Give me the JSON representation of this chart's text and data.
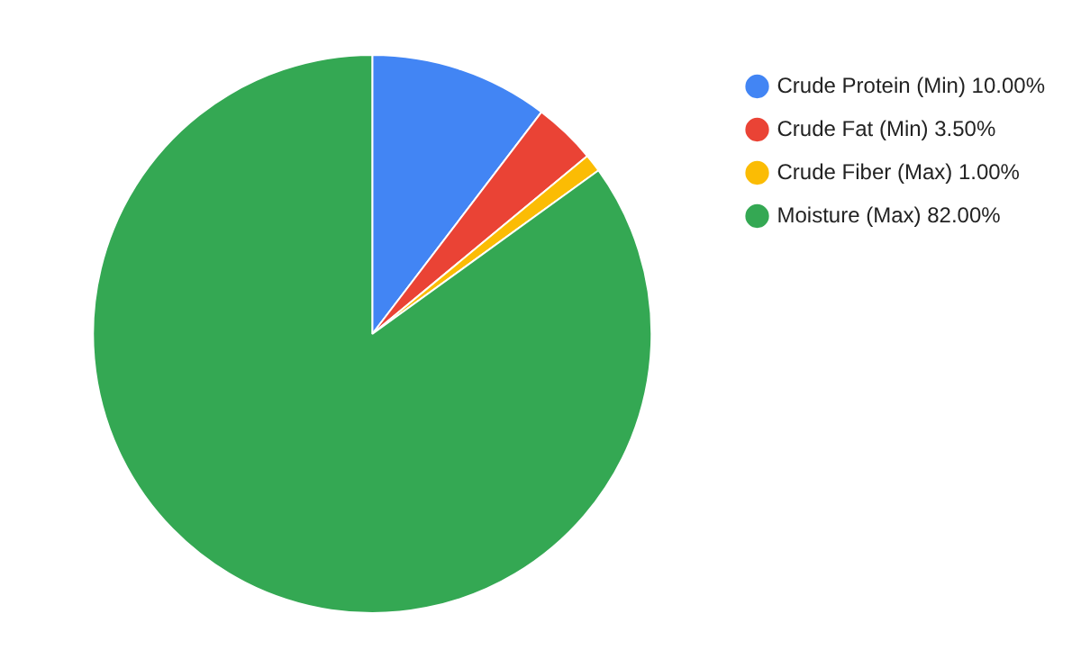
{
  "chart_data": {
    "type": "pie",
    "categories": [
      "Crude Protein (Min) 10.00%",
      "Crude Fat (Min) 3.50%",
      "Crude Fiber (Max) 1.00%",
      "Moisture (Max) 82.00%"
    ],
    "values": [
      10,
      3.5,
      1,
      82
    ],
    "colors": [
      "#4285f4",
      "#ea4335",
      "#fbbc04",
      "#34a853"
    ],
    "legend": "top right"
  }
}
